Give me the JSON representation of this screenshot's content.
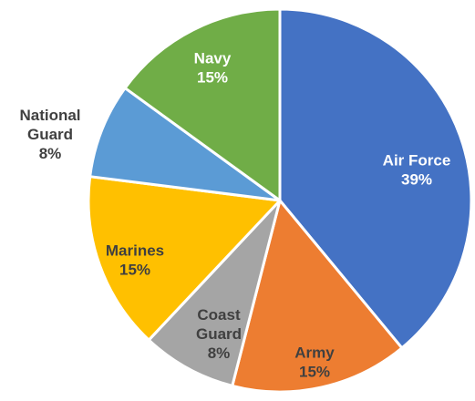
{
  "chart_data": {
    "type": "pie",
    "title": "",
    "slices": [
      {
        "label": "Air Force",
        "label_lines": [
          "Air Force"
        ],
        "value": 39,
        "display": "39%",
        "color": "#4472C4",
        "label_color": "#FFFFFF"
      },
      {
        "label": "Army",
        "label_lines": [
          "Army"
        ],
        "value": 15,
        "display": "15%",
        "color": "#ED7D31",
        "label_color": "#404040"
      },
      {
        "label": "Coast Guard",
        "label_lines": [
          "Coast",
          "Guard"
        ],
        "value": 8,
        "display": "8%",
        "color": "#A5A5A5",
        "label_color": "#404040"
      },
      {
        "label": "Marines",
        "label_lines": [
          "Marines"
        ],
        "value": 15,
        "display": "15%",
        "color": "#FFC000",
        "label_color": "#404040"
      },
      {
        "label": "National Guard",
        "label_lines": [
          "National",
          "Guard"
        ],
        "value": 8,
        "display": "8%",
        "color": "#5B9BD5",
        "label_color": "#404040"
      },
      {
        "label": "Navy",
        "label_lines": [
          "Navy"
        ],
        "value": 15,
        "display": "15%",
        "color": "#70AD47",
        "label_color": "#FFFFFF"
      }
    ],
    "start_angle": "12 o'clock",
    "direction": "clockwise",
    "slice_border_color": "#FFFFFF",
    "legend": "none"
  }
}
